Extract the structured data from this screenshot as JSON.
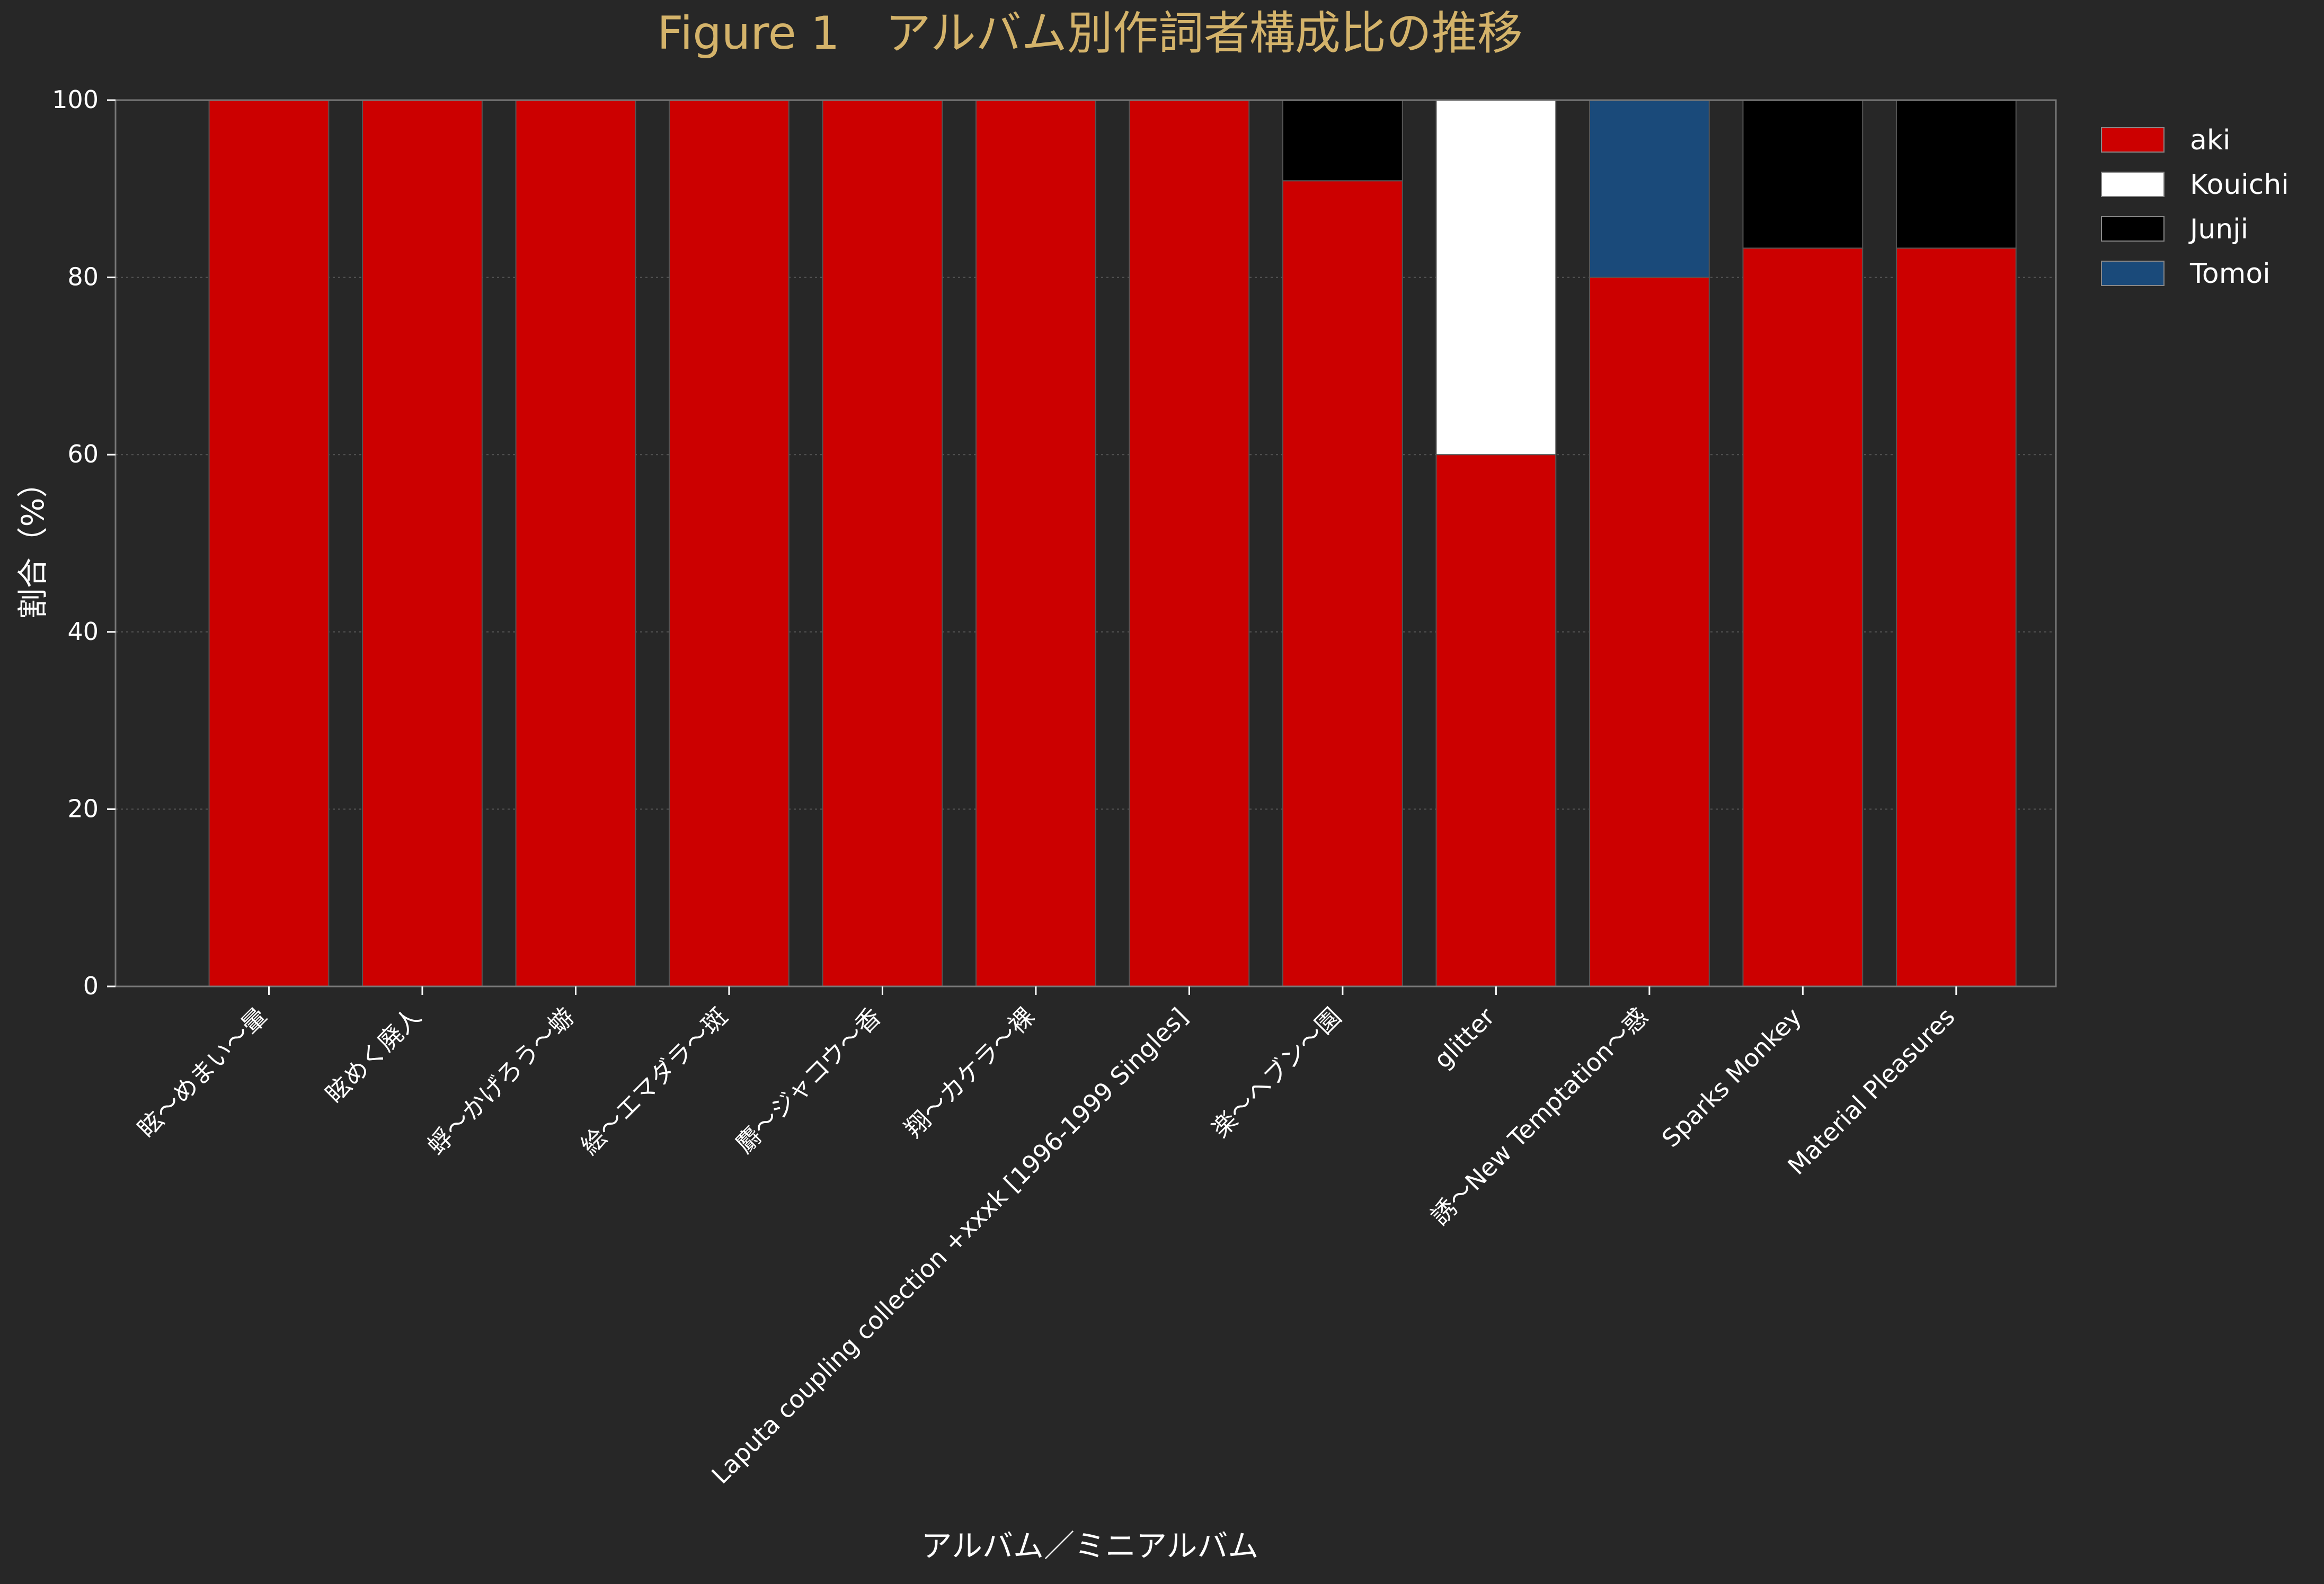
{
  "chart_data": {
    "type": "bar",
    "stacked": true,
    "title": "Figure 1　アルバム別作詞者構成比の推移",
    "xlabel": "アルバム／ミニアルバム",
    "ylabel": "割合（%）",
    "ylim": [
      0,
      100
    ],
    "yticks": [
      0,
      20,
      40,
      60,
      80,
      100
    ],
    "grid": true,
    "legend_position": "top-right",
    "categories": [
      "眩～めまい～暈",
      "眩めく廃人",
      "蜉～かげろう～蝣",
      "絵～エマダラ～斑",
      "麝～ジャコウ～香",
      "翔～カケラ～裸",
      "Laputa coupling collection +xxxk [1996-1999 Singles]",
      "楽～ヘブン～園",
      "glitter",
      "誘～New Temptation～惑",
      "Sparks Monkey",
      "Material Pleasures"
    ],
    "series": [
      {
        "name": "aki",
        "color": "#cc0000",
        "values": [
          100,
          100,
          100,
          100,
          100,
          100,
          100,
          90.9,
          60,
          80,
          83.3,
          83.3
        ]
      },
      {
        "name": "Kouichi",
        "color": "#ffffff",
        "values": [
          0,
          0,
          0,
          0,
          0,
          0,
          0,
          0,
          40,
          0,
          0,
          0
        ]
      },
      {
        "name": "Junji",
        "color": "#000000",
        "values": [
          0,
          0,
          0,
          0,
          0,
          0,
          0,
          9.1,
          0,
          0,
          16.7,
          16.7
        ]
      },
      {
        "name": "Tomoi",
        "color": "#1a4a7a",
        "values": [
          0,
          0,
          0,
          0,
          0,
          0,
          0,
          0,
          0,
          20,
          0,
          0
        ]
      }
    ],
    "colors": {
      "background": "#272727",
      "title": "#d4b36a",
      "text": "#ffffff",
      "axis": "#777777",
      "grid": "#555555"
    }
  }
}
